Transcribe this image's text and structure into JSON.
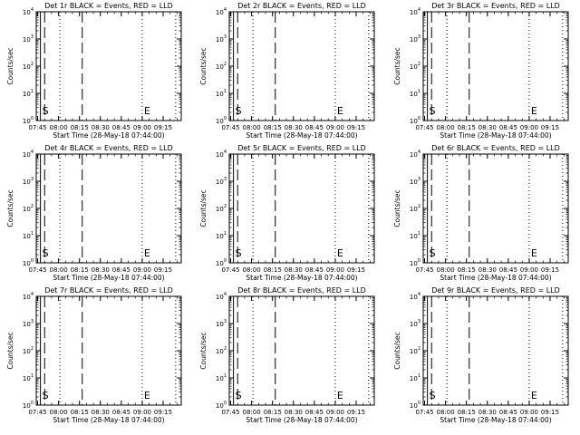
{
  "ylabel": "Counts/sec",
  "xlabel": "Start Time (28-May-18 07:44:00)",
  "yticks": [
    {
      "value": 1,
      "base": "10",
      "exp": "0"
    },
    {
      "value": 10,
      "base": "10",
      "exp": "1"
    },
    {
      "value": 100,
      "base": "10",
      "exp": "2"
    },
    {
      "value": 1000,
      "base": "10",
      "exp": "3"
    },
    {
      "value": 10000,
      "base": "10",
      "exp": "4"
    }
  ],
  "xticks": [
    {
      "minute": 45,
      "label": "07:45"
    },
    {
      "minute": 60,
      "label": "08:00"
    },
    {
      "minute": 75,
      "label": "08:15"
    },
    {
      "minute": 90,
      "label": "08:30"
    },
    {
      "minute": 105,
      "label": "08:45"
    },
    {
      "minute": 120,
      "label": "09:00"
    },
    {
      "minute": 135,
      "label": "09:15"
    }
  ],
  "chart_data": [
    {
      "type": "line",
      "title": "Det 1r BLACK = Events, RED = LLD",
      "series": [],
      "xlim": [
        "07:44",
        "09:28"
      ],
      "ylim": [
        1,
        10000
      ],
      "log_y": true,
      "vlines": [
        {
          "time": "07:47",
          "style": "solid"
        },
        {
          "time": "07:50",
          "style": "dashed"
        },
        {
          "time": "08:01",
          "style": "dotted"
        },
        {
          "time": "08:17",
          "style": "dashed"
        },
        {
          "time": "09:00",
          "style": "dotted"
        },
        {
          "time": "09:24",
          "style": "dotted"
        }
      ],
      "annotations": [
        {
          "text": "S",
          "time": "07:47"
        },
        {
          "text": "E",
          "time": "09:00"
        }
      ]
    },
    {
      "type": "line",
      "title": "Det 2r BLACK = Events, RED = LLD",
      "series": [],
      "xlim": [
        "07:44",
        "09:28"
      ],
      "ylim": [
        1,
        10000
      ],
      "log_y": true,
      "vlines": [
        {
          "time": "07:47",
          "style": "solid"
        },
        {
          "time": "07:50",
          "style": "dashed"
        },
        {
          "time": "08:01",
          "style": "dotted"
        },
        {
          "time": "08:17",
          "style": "dashed"
        },
        {
          "time": "09:00",
          "style": "dotted"
        },
        {
          "time": "09:24",
          "style": "dotted"
        }
      ],
      "annotations": [
        {
          "text": "S",
          "time": "07:47"
        },
        {
          "text": "E",
          "time": "09:00"
        }
      ]
    },
    {
      "type": "line",
      "title": "Det 3r BLACK = Events, RED = LLD",
      "series": [],
      "xlim": [
        "07:44",
        "09:28"
      ],
      "ylim": [
        1,
        10000
      ],
      "log_y": true,
      "vlines": [
        {
          "time": "07:47",
          "style": "solid"
        },
        {
          "time": "07:50",
          "style": "dashed"
        },
        {
          "time": "08:01",
          "style": "dotted"
        },
        {
          "time": "08:17",
          "style": "dashed"
        },
        {
          "time": "09:00",
          "style": "dotted"
        },
        {
          "time": "09:24",
          "style": "dotted"
        }
      ],
      "annotations": [
        {
          "text": "S",
          "time": "07:47"
        },
        {
          "text": "E",
          "time": "09:00"
        }
      ]
    },
    {
      "type": "line",
      "title": "Det 4r BLACK = Events, RED = LLD",
      "series": [],
      "xlim": [
        "07:44",
        "09:28"
      ],
      "ylim": [
        1,
        10000
      ],
      "log_y": true,
      "vlines": [
        {
          "time": "07:47",
          "style": "solid"
        },
        {
          "time": "07:50",
          "style": "dashed"
        },
        {
          "time": "08:01",
          "style": "dotted"
        },
        {
          "time": "08:17",
          "style": "dashed"
        },
        {
          "time": "09:00",
          "style": "dotted"
        },
        {
          "time": "09:24",
          "style": "dotted"
        }
      ],
      "annotations": [
        {
          "text": "S",
          "time": "07:47"
        },
        {
          "text": "E",
          "time": "09:00"
        }
      ]
    },
    {
      "type": "line",
      "title": "Det 5r BLACK = Events, RED = LLD",
      "series": [],
      "xlim": [
        "07:44",
        "09:28"
      ],
      "ylim": [
        1,
        10000
      ],
      "log_y": true,
      "vlines": [
        {
          "time": "07:47",
          "style": "solid"
        },
        {
          "time": "07:50",
          "style": "dashed"
        },
        {
          "time": "08:01",
          "style": "dotted"
        },
        {
          "time": "08:17",
          "style": "dashed"
        },
        {
          "time": "09:00",
          "style": "dotted"
        },
        {
          "time": "09:24",
          "style": "dotted"
        }
      ],
      "annotations": [
        {
          "text": "S",
          "time": "07:47"
        },
        {
          "text": "E",
          "time": "09:00"
        }
      ]
    },
    {
      "type": "line",
      "title": "Det 6r BLACK = Events, RED = LLD",
      "series": [],
      "xlim": [
        "07:44",
        "09:28"
      ],
      "ylim": [
        1,
        10000
      ],
      "log_y": true,
      "vlines": [
        {
          "time": "07:47",
          "style": "solid"
        },
        {
          "time": "07:50",
          "style": "dashed"
        },
        {
          "time": "08:01",
          "style": "dotted"
        },
        {
          "time": "08:17",
          "style": "dashed"
        },
        {
          "time": "09:00",
          "style": "dotted"
        },
        {
          "time": "09:24",
          "style": "dotted"
        }
      ],
      "annotations": [
        {
          "text": "S",
          "time": "07:47"
        },
        {
          "text": "E",
          "time": "09:00"
        }
      ]
    },
    {
      "type": "line",
      "title": "Det 7r BLACK = Events, RED = LLD",
      "series": [],
      "xlim": [
        "07:44",
        "09:28"
      ],
      "ylim": [
        1,
        10000
      ],
      "log_y": true,
      "vlines": [
        {
          "time": "07:47",
          "style": "solid"
        },
        {
          "time": "07:50",
          "style": "dashed"
        },
        {
          "time": "08:01",
          "style": "dotted"
        },
        {
          "time": "08:17",
          "style": "dashed"
        },
        {
          "time": "09:00",
          "style": "dotted"
        },
        {
          "time": "09:24",
          "style": "dotted"
        }
      ],
      "annotations": [
        {
          "text": "S",
          "time": "07:47"
        },
        {
          "text": "E",
          "time": "09:00"
        }
      ]
    },
    {
      "type": "line",
      "title": "Det 8r BLACK = Events, RED = LLD",
      "series": [],
      "xlim": [
        "07:44",
        "09:28"
      ],
      "ylim": [
        1,
        10000
      ],
      "log_y": true,
      "vlines": [
        {
          "time": "07:47",
          "style": "solid"
        },
        {
          "time": "07:50",
          "style": "dashed"
        },
        {
          "time": "08:01",
          "style": "dotted"
        },
        {
          "time": "08:17",
          "style": "dashed"
        },
        {
          "time": "09:00",
          "style": "dotted"
        },
        {
          "time": "09:24",
          "style": "dotted"
        }
      ],
      "annotations": [
        {
          "text": "S",
          "time": "07:47"
        },
        {
          "text": "E",
          "time": "09:00"
        }
      ]
    },
    {
      "type": "line",
      "title": "Det 9r BLACK = Events, RED = LLD",
      "series": [],
      "xlim": [
        "07:44",
        "09:28"
      ],
      "ylim": [
        1,
        10000
      ],
      "log_y": true,
      "vlines": [
        {
          "time": "07:47",
          "style": "solid"
        },
        {
          "time": "07:50",
          "style": "dashed"
        },
        {
          "time": "08:01",
          "style": "dotted"
        },
        {
          "time": "08:17",
          "style": "dashed"
        },
        {
          "time": "09:00",
          "style": "dotted"
        },
        {
          "time": "09:24",
          "style": "dotted"
        }
      ],
      "annotations": [
        {
          "text": "S",
          "time": "07:47"
        },
        {
          "text": "E",
          "time": "09:00"
        }
      ]
    }
  ]
}
